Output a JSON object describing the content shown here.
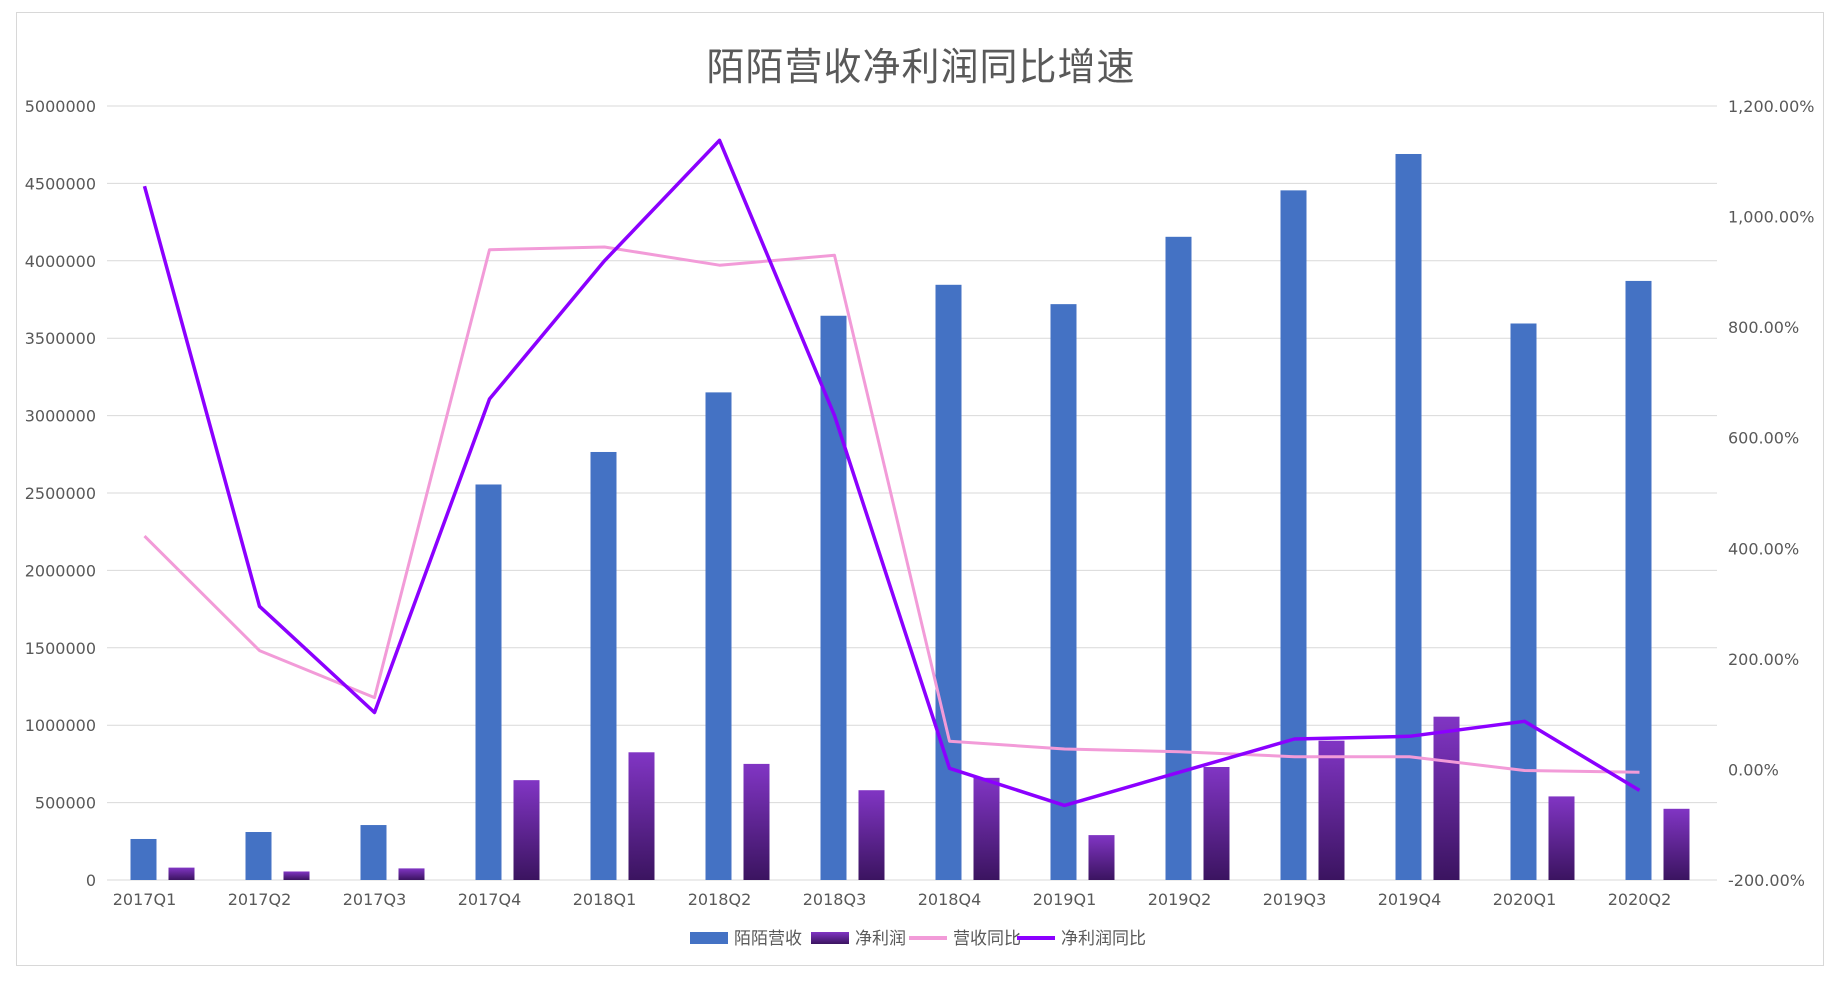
{
  "chart_data": {
    "type": "bar+line",
    "title": "陌陌营收净利润同比增速",
    "categories": [
      "2017Q1",
      "2017Q2",
      "2017Q3",
      "2017Q4",
      "2018Q1",
      "2018Q2",
      "2018Q3",
      "2018Q4",
      "2019Q1",
      "2019Q2",
      "2019Q3",
      "2019Q4",
      "2020Q1",
      "2020Q2"
    ],
    "left_axis": {
      "range": [
        0,
        5000000
      ],
      "ticks": [
        0,
        500000,
        1000000,
        1500000,
        2000000,
        2500000,
        3000000,
        3500000,
        4000000,
        4500000,
        5000000
      ],
      "tick_labels": [
        "0",
        "500000",
        "1000000",
        "1500000",
        "2000000",
        "2500000",
        "3000000",
        "3500000",
        "4000000",
        "4500000",
        "5000000"
      ]
    },
    "right_axis": {
      "range": [
        -200,
        1200
      ],
      "ticks": [
        -200,
        0,
        200,
        400,
        600,
        800,
        1000,
        1200
      ],
      "tick_labels": [
        "-200.00%",
        "0.00%",
        "200.00%",
        "400.00%",
        "600.00%",
        "800.00%",
        "1,000.00%",
        "1,200.00%"
      ]
    },
    "grid": true,
    "legend_position": "bottom",
    "bar_series": [
      {
        "name": "陌陌营收",
        "color": "#4472c4",
        "values": [
          265000,
          310000,
          355000,
          2555000,
          2765000,
          3150000,
          3645000,
          3845000,
          3720000,
          4155000,
          4455000,
          4690000,
          3595000,
          3870000
        ]
      },
      {
        "name": "净利润",
        "color": "#7030a0",
        "values": [
          80000,
          55000,
          75000,
          645000,
          825000,
          750000,
          580000,
          660000,
          290000,
          730000,
          900000,
          1055000,
          540000,
          460000
        ]
      }
    ],
    "line_series": [
      {
        "name": "营收同比",
        "color": "#f29bd8",
        "values": [
          422,
          215,
          130,
          940,
          945,
          912,
          930,
          51,
          37,
          32,
          23,
          23,
          -2,
          -5
        ]
      },
      {
        "name": "净利润同比",
        "color": "#8b00ff",
        "values": [
          1055,
          295,
          103,
          670,
          920,
          1138,
          640,
          2,
          -65,
          -5,
          55,
          60,
          87,
          -38
        ]
      }
    ]
  }
}
